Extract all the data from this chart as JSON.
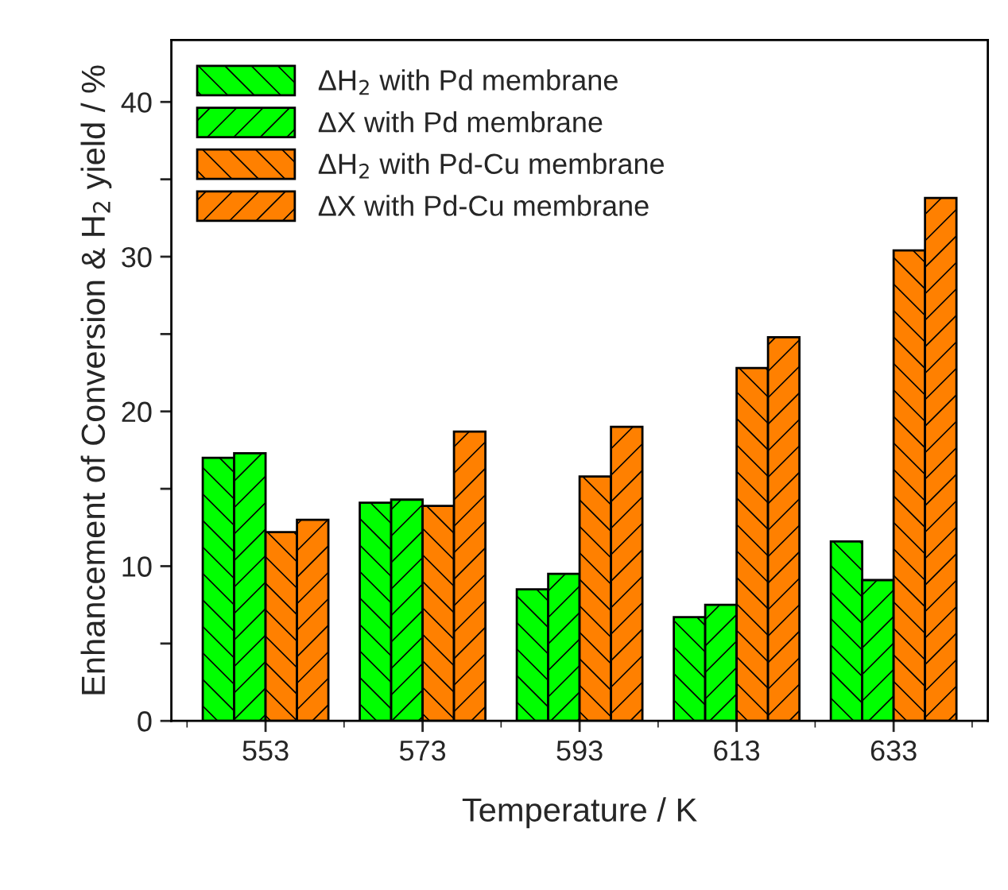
{
  "chart_data": {
    "type": "bar",
    "xlabel": "Temperature / K",
    "ylabel": "Enhancement of Conversion & H$_{2}$ yield / %",
    "categories": [
      "553",
      "573",
      "593",
      "613",
      "633"
    ],
    "series": [
      {
        "name": "ΔH$_{2}$ with Pd membrane",
        "color": "#00ff00",
        "values": [
          17.0,
          14.1,
          8.5,
          6.7,
          11.6
        ]
      },
      {
        "name": "ΔX with Pd membrane",
        "color": "#00ff00",
        "values": [
          17.3,
          14.3,
          9.5,
          7.5,
          9.1
        ]
      },
      {
        "name": "ΔH$_{2}$ with Pd-Cu membrane",
        "color": "#ff8000",
        "values": [
          12.2,
          13.9,
          15.8,
          22.8,
          30.4
        ]
      },
      {
        "name": "ΔX with Pd-Cu membrane",
        "color": "#ff8000",
        "values": [
          13.0,
          18.7,
          19.0,
          24.8,
          33.8
        ]
      }
    ],
    "ylim": [
      0,
      44
    ],
    "yticks": [
      0,
      {
        "value": 5,
        "label": null
      },
      10,
      {
        "value": 15,
        "label": null
      },
      20,
      {
        "value": 25,
        "label": null
      },
      30,
      {
        "value": 35,
        "label": null
      },
      40
    ],
    "grid": false,
    "legend": "top left"
  }
}
